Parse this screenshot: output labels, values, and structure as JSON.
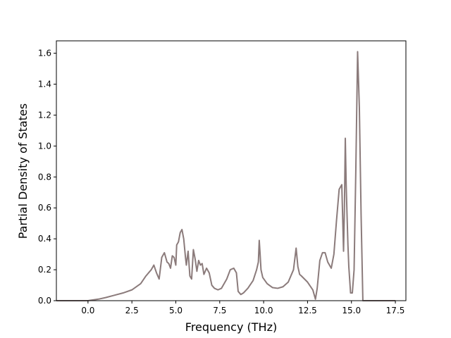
{
  "chart_data": {
    "type": "line",
    "title": "",
    "xlabel": "Frequency (THz)",
    "ylabel": "Partial Density of States",
    "xlim": [
      -1.8,
      18.1
    ],
    "ylim": [
      0.0,
      1.68
    ],
    "xticks": [
      0.0,
      2.5,
      5.0,
      7.5,
      10.0,
      12.5,
      15.0,
      17.5
    ],
    "xtick_labels": [
      "0.0",
      "2.5",
      "5.0",
      "7.5",
      "10.0",
      "12.5",
      "15.0",
      "17.5"
    ],
    "yticks": [
      0.0,
      0.2,
      0.4,
      0.6,
      0.8,
      1.0,
      1.2,
      1.4,
      1.6
    ],
    "ytick_labels": [
      "0.0",
      "0.2",
      "0.4",
      "0.6",
      "0.8",
      "1.0",
      "1.2",
      "1.4",
      "1.6"
    ],
    "grid": false,
    "line_color": "#8b7b7b",
    "series": [
      {
        "x": [
          -1.8,
          -1.5,
          0.0,
          0.3,
          0.6,
          1.0,
          1.5,
          2.0,
          2.5,
          3.0,
          3.3,
          3.6,
          3.75,
          3.9,
          4.05,
          4.2,
          4.35,
          4.5,
          4.6,
          4.7,
          4.8,
          4.9,
          5.0,
          5.05,
          5.15,
          5.25,
          5.35,
          5.45,
          5.55,
          5.6,
          5.7,
          5.8,
          5.9,
          6.0,
          6.1,
          6.2,
          6.3,
          6.4,
          6.5,
          6.6,
          6.75,
          6.9,
          7.05,
          7.2,
          7.4,
          7.6,
          7.9,
          8.1,
          8.3,
          8.45,
          8.55,
          8.7,
          8.85,
          9.1,
          9.4,
          9.6,
          9.7,
          9.75,
          9.8,
          9.85,
          9.95,
          10.2,
          10.5,
          10.8,
          11.1,
          11.4,
          11.7,
          11.85,
          11.95,
          12.05,
          12.15,
          12.5,
          12.8,
          12.95,
          13.05,
          13.2,
          13.35,
          13.5,
          13.65,
          13.85,
          14.0,
          14.15,
          14.3,
          14.45,
          14.55,
          14.6,
          14.65,
          14.7,
          14.75,
          14.8,
          14.85,
          14.95,
          15.05,
          15.15,
          15.25,
          15.35,
          15.45,
          15.55,
          15.65,
          15.75,
          16.0,
          17.0,
          17.5
        ],
        "y": [
          0.0,
          0.0,
          0.0,
          0.005,
          0.01,
          0.02,
          0.035,
          0.05,
          0.07,
          0.11,
          0.16,
          0.2,
          0.23,
          0.18,
          0.14,
          0.28,
          0.31,
          0.25,
          0.24,
          0.21,
          0.29,
          0.28,
          0.23,
          0.36,
          0.38,
          0.44,
          0.46,
          0.4,
          0.28,
          0.23,
          0.32,
          0.16,
          0.14,
          0.33,
          0.27,
          0.19,
          0.26,
          0.23,
          0.24,
          0.17,
          0.21,
          0.18,
          0.1,
          0.08,
          0.07,
          0.08,
          0.14,
          0.2,
          0.21,
          0.18,
          0.06,
          0.04,
          0.05,
          0.08,
          0.13,
          0.2,
          0.25,
          0.39,
          0.3,
          0.2,
          0.15,
          0.11,
          0.085,
          0.08,
          0.09,
          0.12,
          0.2,
          0.34,
          0.22,
          0.17,
          0.16,
          0.12,
          0.07,
          0.01,
          0.08,
          0.26,
          0.31,
          0.31,
          0.25,
          0.21,
          0.3,
          0.52,
          0.72,
          0.75,
          0.32,
          0.6,
          1.05,
          0.75,
          0.55,
          0.36,
          0.22,
          0.05,
          0.05,
          0.2,
          0.85,
          1.61,
          1.25,
          0.55,
          0.0,
          0.0,
          0.0,
          0.0,
          0.0
        ]
      }
    ]
  }
}
